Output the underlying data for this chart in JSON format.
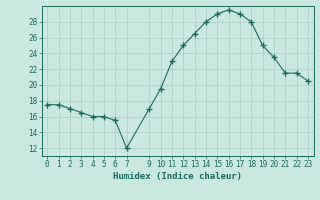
{
  "x": [
    0,
    1,
    2,
    3,
    4,
    5,
    6,
    7,
    9,
    10,
    11,
    12,
    13,
    14,
    15,
    16,
    17,
    18,
    19,
    20,
    21,
    22,
    23
  ],
  "y": [
    17.5,
    17.5,
    17.0,
    16.5,
    16.0,
    16.0,
    15.5,
    12.0,
    17.0,
    19.5,
    23.0,
    25.0,
    26.5,
    28.0,
    29.0,
    29.5,
    29.0,
    28.0,
    25.0,
    23.5,
    21.5,
    21.5,
    20.5
  ],
  "line_color": "#1a6b5a",
  "marker": "+",
  "bg_color": "#c8e8e0",
  "grid_color_major": "#b0d0c8",
  "grid_color_minor": "#b8d8d0",
  "xlabel": "Humidex (Indice chaleur)",
  "xlim": [
    -0.5,
    23.5
  ],
  "ylim": [
    11,
    30
  ],
  "yticks": [
    12,
    14,
    16,
    18,
    20,
    22,
    24,
    26,
    28
  ],
  "xticks": [
    0,
    1,
    2,
    3,
    4,
    5,
    6,
    7,
    9,
    10,
    11,
    12,
    13,
    14,
    15,
    16,
    17,
    18,
    19,
    20,
    21,
    22,
    23
  ],
  "font_color": "#1a6b5a"
}
